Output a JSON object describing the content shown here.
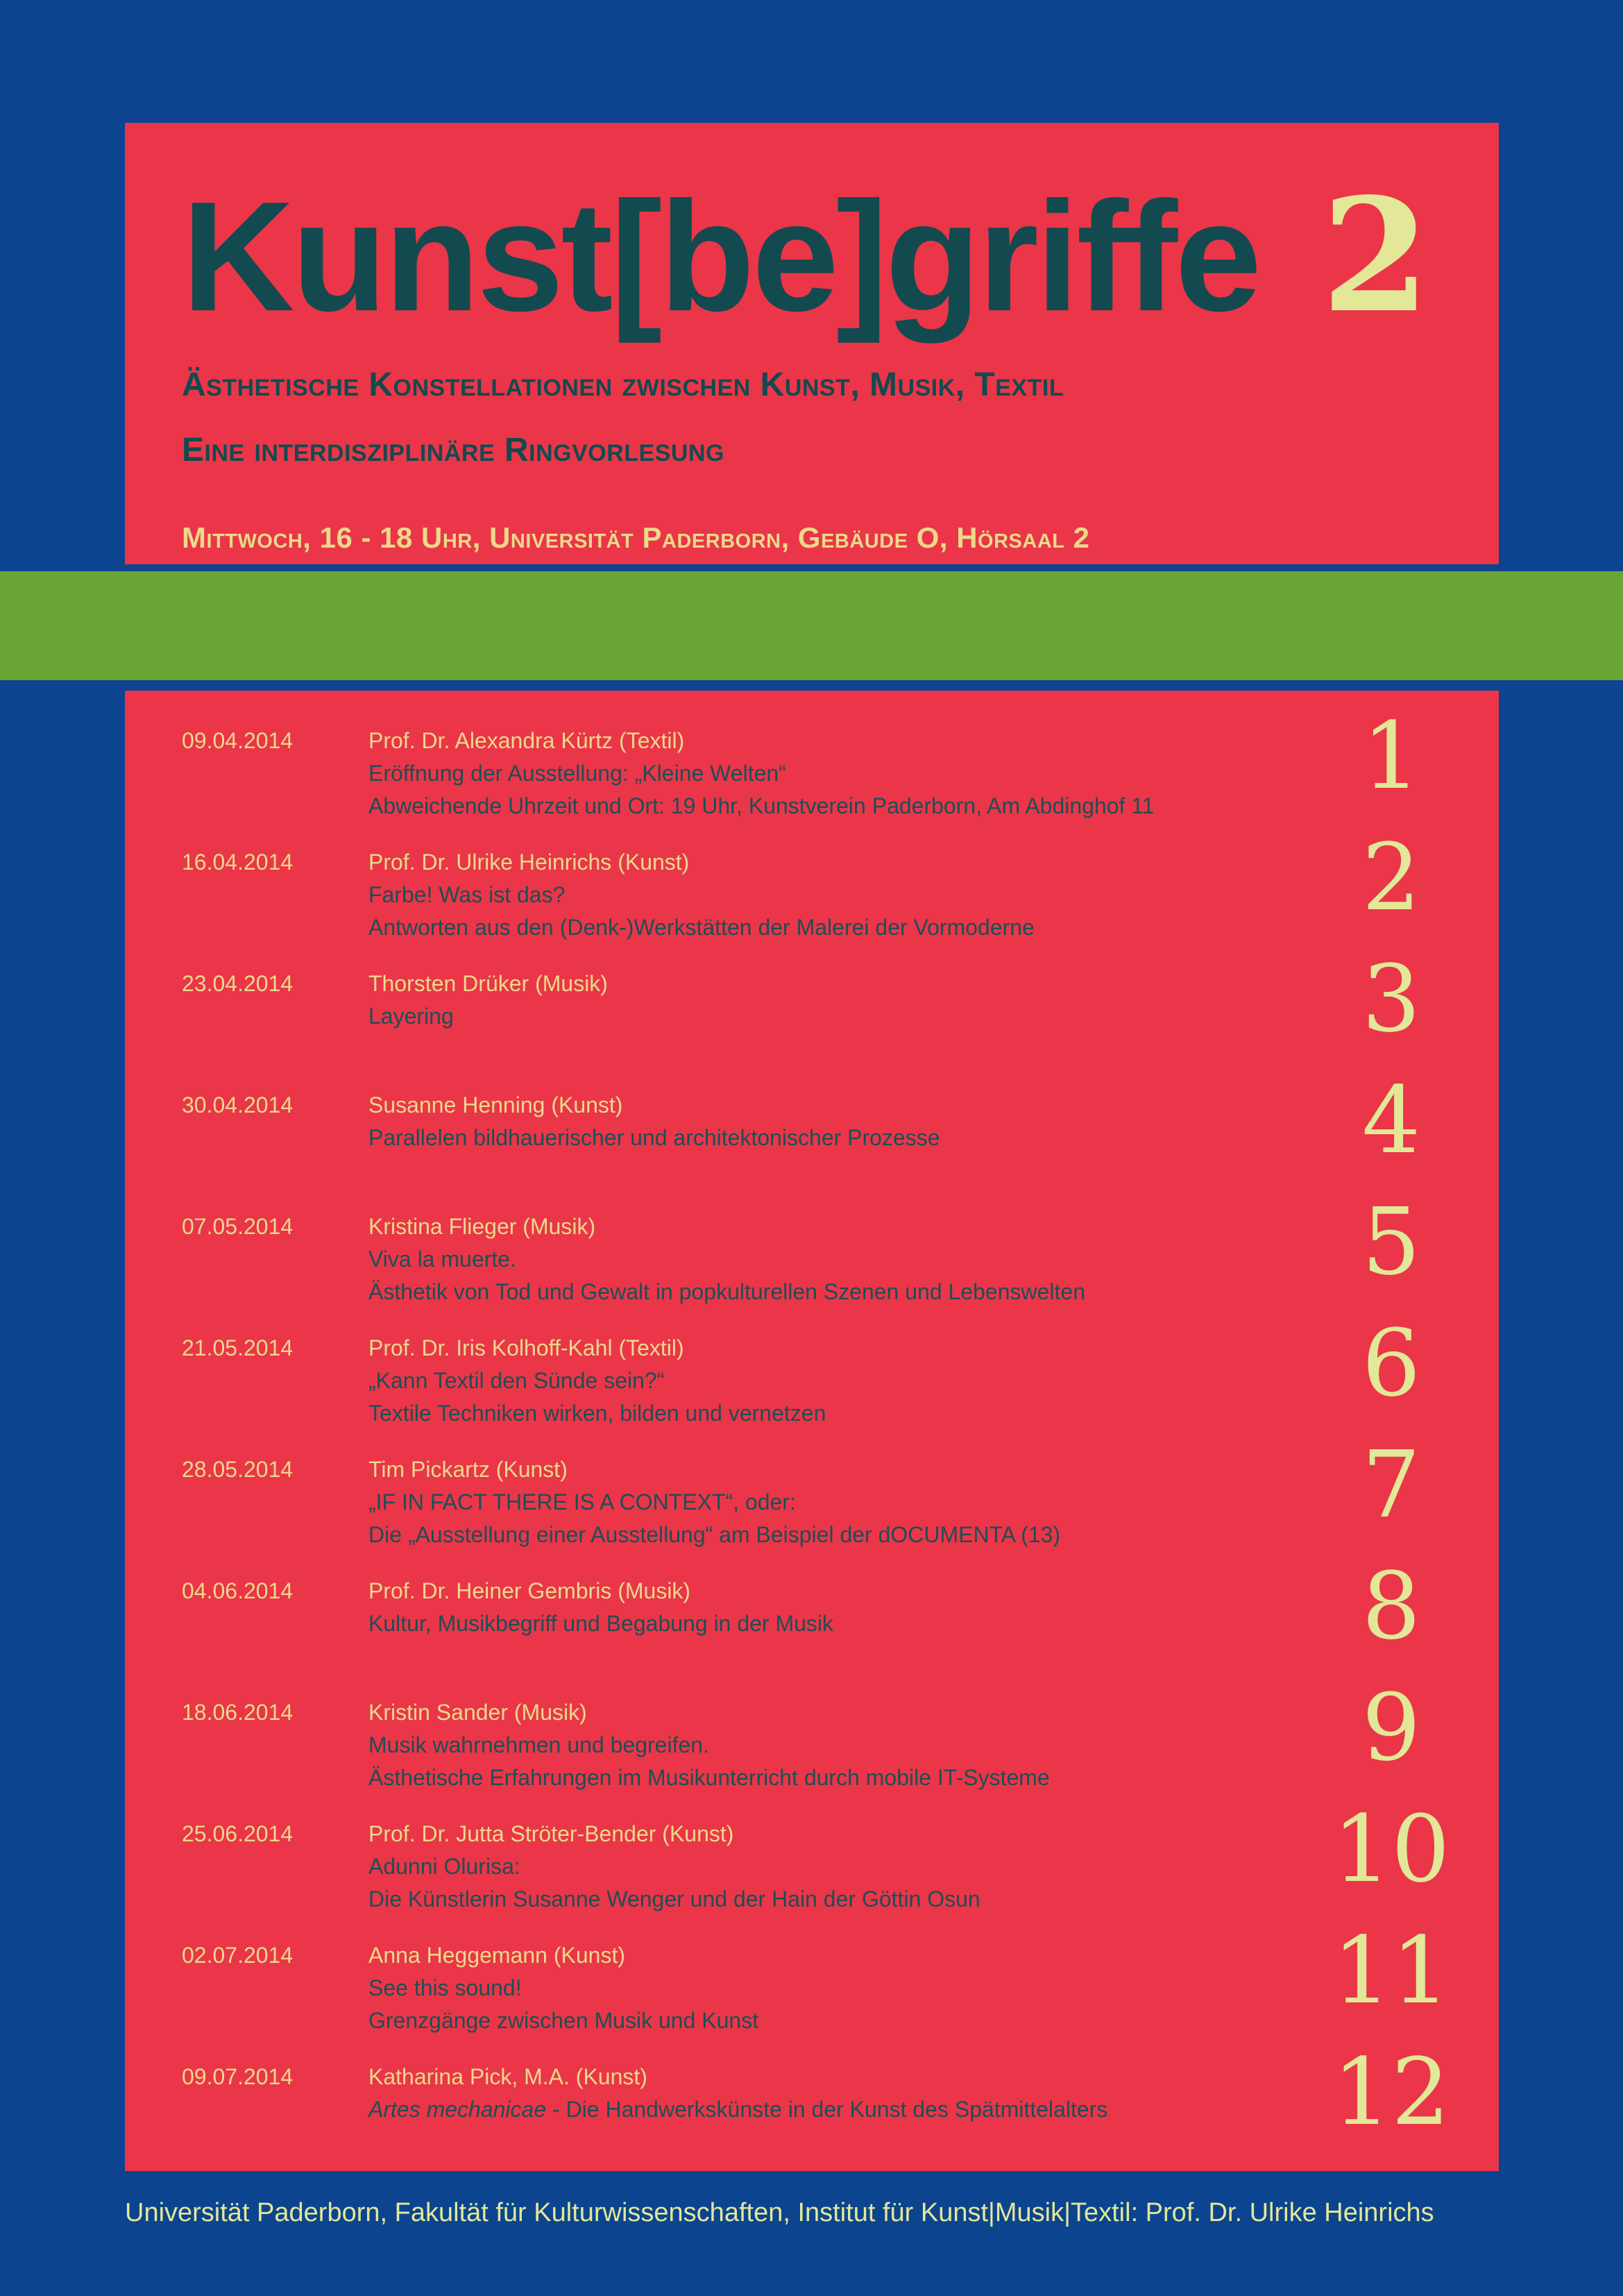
{
  "colors": {
    "blue": "#0c4490",
    "red": "#ea3648",
    "green": "#6aa636",
    "teal": "#124a50",
    "teal-body": "#1d4e57",
    "gold": "#ecd98b",
    "pale": "#e2e897"
  },
  "header": {
    "title": "Kunst[be]griffe",
    "title_number": "2",
    "subtitle1": "Ästhetische Konstellationen zwischen Kunst, Musik, Textil",
    "subtitle2": "Eine interdisziplinäre Ringvorlesung",
    "meta": "Mittwoch, 16 - 18 Uhr,  Universität Paderborn, Gebäude O, Hörsaal 2"
  },
  "schedule": {
    "entries": [
      {
        "number": "1",
        "date": "09.04.2014",
        "speaker": "Prof. Dr. Alexandra Kürtz (Textil)",
        "lines": [
          "Eröffnung der Ausstellung: „Kleine Welten“",
          "Abweichende Uhrzeit und Ort: 19 Uhr, Kunstverein Paderborn, Am Abdinghof 11"
        ]
      },
      {
        "number": "2",
        "date": "16.04.2014",
        "speaker": "Prof. Dr. Ulrike Heinrichs (Kunst)",
        "lines": [
          "Farbe! Was ist das?",
          "Antworten aus den (Denk-)Werkstätten der Malerei der Vormoderne"
        ]
      },
      {
        "number": "3",
        "date": "23.04.2014",
        "speaker": "Thorsten Drüker (Musik)",
        "lines": [
          "Layering"
        ]
      },
      {
        "number": "4",
        "date": "30.04.2014",
        "speaker": "Susanne Henning (Kunst)",
        "lines": [
          "Parallelen bildhauerischer und architektonischer Prozesse"
        ]
      },
      {
        "number": "5",
        "date": "07.05.2014",
        "speaker": "Kristina Flieger (Musik)",
        "lines": [
          "Viva la muerte.",
          "Ästhetik von Tod und Gewalt in popkulturellen Szenen und Lebenswelten"
        ]
      },
      {
        "number": "6",
        "date": "21.05.2014",
        "speaker": "Prof. Dr. Iris Kolhoff-Kahl (Textil)",
        "lines": [
          "„Kann Textil den Sünde sein?“",
          "Textile Techniken wirken, bilden und vernetzen"
        ]
      },
      {
        "number": "7",
        "date": "28.05.2014",
        "speaker": "Tim Pickartz (Kunst)",
        "lines": [
          "„IF IN FACT THERE IS A CONTEXT“, oder:",
          "Die „Ausstellung einer Ausstellung“ am Beispiel der dOCUMENTA (13)"
        ]
      },
      {
        "number": "8",
        "date": "04.06.2014",
        "speaker": "Prof. Dr. Heiner Gembris (Musik)",
        "lines": [
          "Kultur, Musikbegriff und Begabung in der Musik"
        ]
      },
      {
        "number": "9",
        "date": "18.06.2014",
        "speaker": "Kristin Sander (Musik)",
        "lines": [
          "Musik wahrnehmen und begreifen.",
          "Ästhetische Erfahrungen im Musikunterricht durch mobile IT-Systeme"
        ]
      },
      {
        "number": "10",
        "date": "25.06.2014",
        "speaker": "Prof. Dr. Jutta Ströter-Bender (Kunst)",
        "lines": [
          "Adunni Olurisa:",
          "Die Künstlerin Susanne Wenger und der Hain der Göttin Osun"
        ]
      },
      {
        "number": "11",
        "date": "02.07.2014",
        "speaker": "Anna Heggemann (Kunst)",
        "lines": [
          "See this sound!",
          "Grenzgänge zwischen Musik und Kunst"
        ]
      },
      {
        "number": "12",
        "date": "09.07.2014",
        "speaker": "Katharina Pick, M.A. (Kunst)",
        "lines": [
          {
            "italic": "Artes mechanicae",
            "text": " - Die Handwerkskünste in der Kunst des Spätmittelalters"
          }
        ]
      }
    ]
  },
  "footer": {
    "text": "Universität Paderborn, Fakultät für Kulturwissenschaften, Institut für Kunst|Musik|Textil: Prof. Dr. Ulrike Heinrichs"
  }
}
